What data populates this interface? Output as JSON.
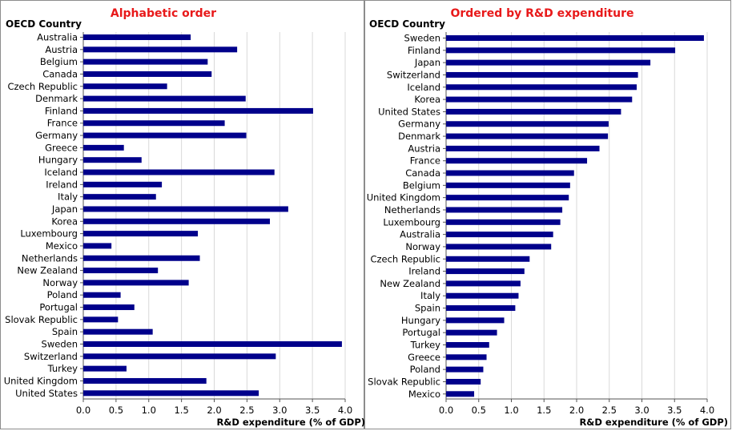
{
  "bar_color": "#00008b",
  "title_color": "#e8191a",
  "chart_data": [
    {
      "type": "bar",
      "orientation": "horizontal",
      "title": "Alphabetic order",
      "category_header": "OECD Country",
      "xlabel": "R&D expenditure (% of GDP)",
      "xlim": [
        0,
        4.0
      ],
      "xticks": [
        "0.0",
        "0.5",
        "1.0",
        "1.5",
        "2.0",
        "2.5",
        "3.0",
        "3.5",
        "4.0"
      ],
      "grid": true,
      "categories": [
        "Australia",
        "Austria",
        "Belgium",
        "Canada",
        "Czech Republic",
        "Denmark",
        "Finland",
        "France",
        "Germany",
        "Greece",
        "Hungary",
        "Iceland",
        "Ireland",
        "Italy",
        "Japan",
        "Korea",
        "Luxembourg",
        "Mexico",
        "Netherlands",
        "New Zealand",
        "Norway",
        "Poland",
        "Portugal",
        "Slovak Republic",
        "Spain",
        "Sweden",
        "Switzerland",
        "Turkey",
        "United Kingdom",
        "United States"
      ],
      "values": [
        1.64,
        2.35,
        1.9,
        1.96,
        1.28,
        2.48,
        3.51,
        2.16,
        2.49,
        0.62,
        0.89,
        2.92,
        1.2,
        1.11,
        3.13,
        2.85,
        1.75,
        0.43,
        1.78,
        1.14,
        1.61,
        0.57,
        0.78,
        0.53,
        1.06,
        3.95,
        2.94,
        0.66,
        1.88,
        2.68
      ]
    },
    {
      "type": "bar",
      "orientation": "horizontal",
      "title": "Ordered by R&D expenditure",
      "category_header": "OECD Country",
      "xlabel": "R&D expenditure (% of GDP)",
      "xlim": [
        0,
        4.0
      ],
      "xticks": [
        "0.0",
        "0.5",
        "1.0",
        "1.5",
        "2.0",
        "2.5",
        "3.0",
        "3.5",
        "4.0"
      ],
      "grid": true,
      "categories": [
        "Sweden",
        "Finland",
        "Japan",
        "Switzerland",
        "Iceland",
        "Korea",
        "United States",
        "Germany",
        "Denmark",
        "Austria",
        "France",
        "Canada",
        "Belgium",
        "United Kingdom",
        "Netherlands",
        "Luxembourg",
        "Australia",
        "Norway",
        "Czech Republic",
        "Ireland",
        "New Zealand",
        "Italy",
        "Spain",
        "Hungary",
        "Portugal",
        "Turkey",
        "Greece",
        "Poland",
        "Slovak Republic",
        "Mexico"
      ],
      "values": [
        3.95,
        3.51,
        3.13,
        2.94,
        2.92,
        2.85,
        2.68,
        2.49,
        2.48,
        2.35,
        2.16,
        1.96,
        1.9,
        1.88,
        1.78,
        1.75,
        1.64,
        1.61,
        1.28,
        1.2,
        1.14,
        1.11,
        1.06,
        0.89,
        0.78,
        0.66,
        0.62,
        0.57,
        0.53,
        0.43
      ]
    }
  ]
}
